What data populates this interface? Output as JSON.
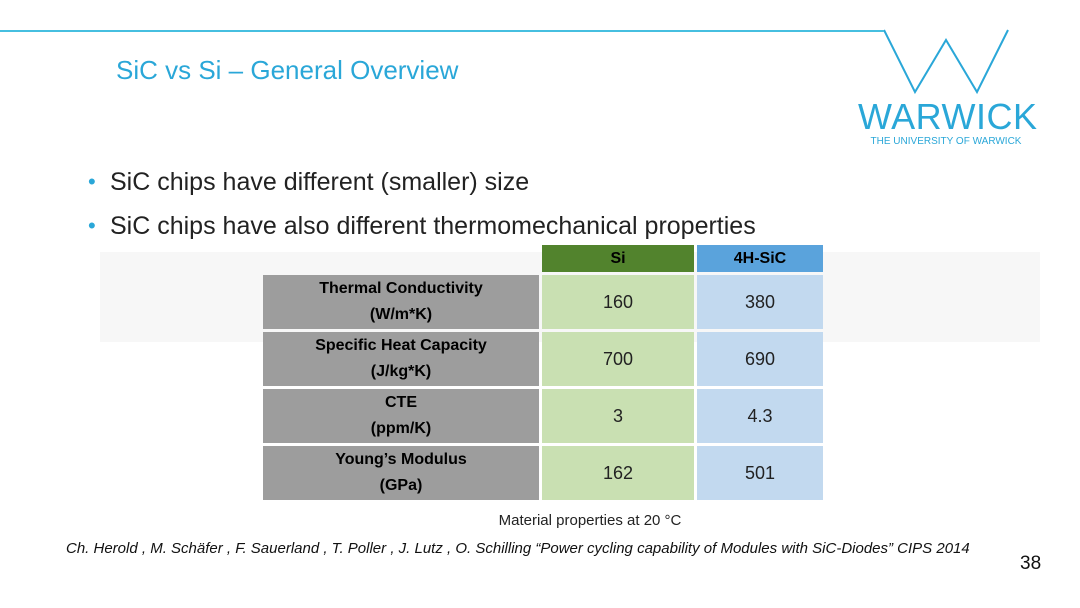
{
  "slide": {
    "title": "SiC vs Si – General Overview",
    "page_number": "38"
  },
  "logo": {
    "wordmark": "WARWICK",
    "subtitle": "THE UNIVERSITY OF WARWICK"
  },
  "bullets": [
    "SiC chips have different (smaller) size",
    "SiC chips have also different thermomechanical properties"
  ],
  "table": {
    "headers": [
      "Si",
      "4H-SiC"
    ],
    "rows": [
      {
        "label": "Thermal Conductivity",
        "unit": "(W/m*K)",
        "si": "160",
        "sic": "380"
      },
      {
        "label": "Specific Heat Capacity",
        "unit": "(J/kg*K)",
        "si": "700",
        "sic": "690"
      },
      {
        "label": "CTE",
        "unit": "(ppm/K)",
        "si": "3",
        "sic": "4.3"
      },
      {
        "label": "Young’s Modulus",
        "unit": "(GPa)",
        "si": "162",
        "sic": "501"
      }
    ],
    "caption": "Material properties at 20 °C"
  },
  "citation": "Ch. Herold , M. Schäfer , F. Sauerland , T. Poller , J. Lutz , O. Schilling “Power cycling capability of Modules with SiC-Diodes” CIPS 2014",
  "colors": {
    "accent": "#2aa7d8",
    "si_header": "#52832d",
    "sic_header": "#5aa3dc",
    "label_cell": "#9d9d9d",
    "si_cell": "#c9e0b2",
    "sic_cell": "#c2d9ef"
  }
}
